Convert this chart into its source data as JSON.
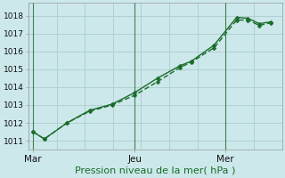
{
  "title": "Pression niveau de la mer( hPa )",
  "bg_color": "#cce8ea",
  "grid_color": "#b0d0d2",
  "line_color": "#1a6b2a",
  "series1_x": [
    0,
    0.5,
    1.5,
    2.5,
    3.5,
    4.5,
    5.5,
    6.5,
    7.0,
    8.0,
    9.0,
    9.5,
    10.0,
    10.5
  ],
  "series1_y": [
    1011.5,
    1011.1,
    1012.0,
    1012.7,
    1013.05,
    1013.7,
    1014.5,
    1015.2,
    1015.45,
    1016.35,
    1017.9,
    1017.85,
    1017.55,
    1017.65
  ],
  "series2_x": [
    0,
    0.5,
    1.5,
    2.5,
    3.5,
    4.5,
    5.5,
    6.5,
    7.0,
    8.0,
    9.0,
    9.5,
    10.0,
    10.5
  ],
  "series2_y": [
    1011.5,
    1011.15,
    1012.0,
    1012.75,
    1013.1,
    1013.6,
    1014.4,
    1015.15,
    1015.5,
    1016.35,
    1017.95,
    1017.85,
    1017.6,
    1017.65
  ],
  "ylim": [
    1010.5,
    1018.7
  ],
  "xlim": [
    -0.2,
    11.0
  ],
  "ytick_positions": [
    1011,
    1012,
    1013,
    1014,
    1015,
    1016,
    1017,
    1018
  ],
  "xtick_positions": [
    0,
    4.5,
    8.5
  ],
  "xtick_labels": [
    "Mar",
    "Jeu",
    "Mer"
  ],
  "vline_positions": [
    0,
    4.5,
    8.5
  ],
  "n_vgrid": 10,
  "ylabel_fontsize": 6.5,
  "xlabel_fontsize": 8.0,
  "xtick_fontsize": 7.5,
  "line_width": 1.0,
  "marker_size": 2.5
}
